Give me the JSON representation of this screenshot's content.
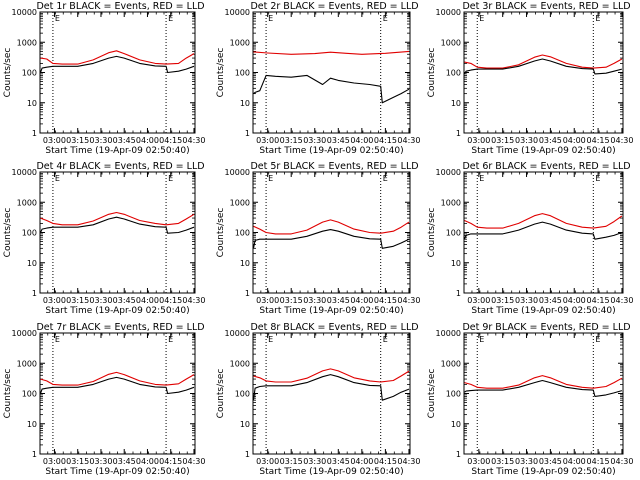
{
  "colors": {
    "events": "#000000",
    "lld": "#e00000",
    "axes": "#000000",
    "background": "#ffffff",
    "marker": "#000000"
  },
  "chart_data": [
    {
      "type": "line",
      "title": "Det 1r BLACK = Events, RED = LLD",
      "xlabel": "Start Time (19-Apr-09 02:50:40)",
      "ylabel": "Counts/sec",
      "y_scale": "log",
      "ylim": [
        1,
        10000
      ],
      "x_range_minutes_from_start": [
        0,
        100
      ],
      "x_ticks": [
        "03:00",
        "03:15",
        "03:30",
        "03:45",
        "04:00",
        "04:15",
        "04:30"
      ],
      "y_ticks": [
        "1",
        "10",
        "100",
        "1000",
        "10000"
      ],
      "dotted_vertical_times": [
        "02:59",
        "04:12"
      ],
      "marker_labels": [
        "E",
        "E"
      ],
      "series": [
        {
          "name": "LLD",
          "x": [
            "02:51",
            "02:55",
            "02:59",
            "03:05",
            "03:15",
            "03:25",
            "03:35",
            "03:40",
            "03:45",
            "03:55",
            "04:05",
            "04:12",
            "04:20",
            "04:25",
            "04:30"
          ],
          "y": [
            300,
            280,
            200,
            190,
            190,
            260,
            450,
            520,
            420,
            260,
            200,
            190,
            200,
            300,
            420
          ]
        },
        {
          "name": "Events",
          "x": [
            "02:51",
            "02:52",
            "02:55",
            "02:59",
            "03:05",
            "03:15",
            "03:25",
            "03:35",
            "03:40",
            "03:45",
            "03:55",
            "04:05",
            "04:12",
            "04:13",
            "04:20",
            "04:25",
            "04:30"
          ],
          "y": [
            100,
            140,
            150,
            160,
            160,
            160,
            200,
            300,
            340,
            300,
            200,
            165,
            160,
            100,
            110,
            130,
            160
          ]
        }
      ]
    },
    {
      "type": "line",
      "title": "Det 2r BLACK = Events, RED = LLD",
      "xlabel": "Start Time (19-Apr-09 02:50:40)",
      "ylabel": "Counts/sec",
      "y_scale": "log",
      "ylim": [
        1,
        10000
      ],
      "x_range_minutes_from_start": [
        0,
        100
      ],
      "x_ticks": [
        "03:00",
        "03:15",
        "03:30",
        "03:45",
        "04:00",
        "04:15",
        "04:30"
      ],
      "y_ticks": [
        "1",
        "10",
        "100",
        "1000",
        "10000"
      ],
      "dotted_vertical_times": [
        "02:59",
        "04:12"
      ],
      "marker_labels": [
        "E",
        "E"
      ],
      "series": [
        {
          "name": "LLD",
          "x": [
            "02:51",
            "03:00",
            "03:15",
            "03:30",
            "03:40",
            "03:50",
            "04:00",
            "04:15",
            "04:30"
          ],
          "y": [
            480,
            440,
            400,
            420,
            470,
            430,
            400,
            430,
            500
          ]
        },
        {
          "name": "Events",
          "x": [
            "02:51",
            "02:52",
            "02:55",
            "02:59",
            "03:05",
            "03:15",
            "03:25",
            "03:35",
            "03:40",
            "03:45",
            "03:55",
            "04:05",
            "04:12",
            "04:13",
            "04:20",
            "04:25",
            "04:30"
          ],
          "y": [
            20,
            22,
            25,
            80,
            75,
            70,
            80,
            40,
            65,
            55,
            45,
            40,
            35,
            10,
            15,
            20,
            28
          ]
        }
      ]
    },
    {
      "type": "line",
      "title": "Det 3r BLACK = Events, RED = LLD",
      "xlabel": "Start Time (19-Apr-09 02:50:40)",
      "ylabel": "Counts/sec",
      "y_scale": "log",
      "ylim": [
        1,
        10000
      ],
      "x_range_minutes_from_start": [
        0,
        100
      ],
      "x_ticks": [
        "03:00",
        "03:15",
        "03:30",
        "03:45",
        "04:00",
        "04:15",
        "04:30"
      ],
      "y_ticks": [
        "1",
        "10",
        "100",
        "1000",
        "10000"
      ],
      "dotted_vertical_times": [
        "02:59",
        "04:12"
      ],
      "marker_labels": [
        "E",
        "E"
      ],
      "series": [
        {
          "name": "LLD",
          "x": [
            "02:51",
            "02:55",
            "02:59",
            "03:05",
            "03:15",
            "03:25",
            "03:35",
            "03:40",
            "03:45",
            "03:55",
            "04:05",
            "04:12",
            "04:20",
            "04:25",
            "04:30"
          ],
          "y": [
            220,
            200,
            150,
            140,
            140,
            180,
            320,
            380,
            330,
            200,
            150,
            140,
            150,
            200,
            280
          ]
        },
        {
          "name": "Events",
          "x": [
            "02:51",
            "02:52",
            "02:55",
            "02:59",
            "03:05",
            "03:15",
            "03:25",
            "03:35",
            "03:40",
            "03:45",
            "03:55",
            "04:05",
            "04:12",
            "04:13",
            "04:20",
            "04:25",
            "04:30"
          ],
          "y": [
            90,
            110,
            120,
            130,
            130,
            130,
            160,
            240,
            280,
            240,
            160,
            135,
            130,
            90,
            95,
            110,
            130
          ]
        }
      ]
    },
    {
      "type": "line",
      "title": "Det 4r BLACK = Events, RED = LLD",
      "xlabel": "Start Time (19-Apr-09 02:50:40)",
      "ylabel": "Counts/sec",
      "y_scale": "log",
      "ylim": [
        1,
        10000
      ],
      "x_range_minutes_from_start": [
        0,
        100
      ],
      "x_ticks": [
        "03:00",
        "03:15",
        "03:30",
        "03:45",
        "04:00",
        "04:15",
        "04:30"
      ],
      "y_ticks": [
        "1",
        "10",
        "100",
        "1000",
        "10000"
      ],
      "dotted_vertical_times": [
        "02:59",
        "04:12"
      ],
      "marker_labels": [
        "E",
        "E"
      ],
      "series": [
        {
          "name": "LLD",
          "x": [
            "02:51",
            "02:55",
            "02:59",
            "03:05",
            "03:15",
            "03:25",
            "03:35",
            "03:40",
            "03:45",
            "03:55",
            "04:05",
            "04:12",
            "04:20",
            "04:25",
            "04:30"
          ],
          "y": [
            300,
            250,
            200,
            180,
            180,
            240,
            400,
            460,
            400,
            250,
            200,
            180,
            200,
            280,
            400
          ]
        },
        {
          "name": "Events",
          "x": [
            "02:51",
            "02:52",
            "02:55",
            "02:59",
            "03:05",
            "03:15",
            "03:25",
            "03:35",
            "03:40",
            "03:45",
            "03:55",
            "04:05",
            "04:12",
            "04:13",
            "04:20",
            "04:25",
            "04:30"
          ],
          "y": [
            100,
            130,
            140,
            150,
            150,
            150,
            180,
            280,
            320,
            280,
            190,
            155,
            150,
            95,
            100,
            120,
            150
          ]
        }
      ]
    },
    {
      "type": "line",
      "title": "Det 5r BLACK = Events, RED = LLD",
      "xlabel": "Start Time (19-Apr-09 02:50:40)",
      "ylabel": "Counts/sec",
      "y_scale": "log",
      "ylim": [
        1,
        10000
      ],
      "x_range_minutes_from_start": [
        0,
        100
      ],
      "x_ticks": [
        "03:00",
        "03:15",
        "03:30",
        "03:45",
        "04:00",
        "04:15",
        "04:30"
      ],
      "y_ticks": [
        "1",
        "10",
        "100",
        "1000",
        "10000"
      ],
      "dotted_vertical_times": [
        "02:59",
        "04:12"
      ],
      "marker_labels": [
        "E",
        "E"
      ],
      "series": [
        {
          "name": "LLD",
          "x": [
            "02:51",
            "02:55",
            "02:59",
            "03:05",
            "03:15",
            "03:25",
            "03:35",
            "03:40",
            "03:45",
            "03:55",
            "04:05",
            "04:12",
            "04:20",
            "04:25",
            "04:30"
          ],
          "y": [
            160,
            130,
            100,
            90,
            90,
            120,
            220,
            260,
            220,
            130,
            100,
            95,
            110,
            150,
            220
          ]
        },
        {
          "name": "Events",
          "x": [
            "02:51",
            "02:52",
            "02:55",
            "02:59",
            "03:05",
            "03:15",
            "03:25",
            "03:35",
            "03:40",
            "03:45",
            "03:55",
            "04:05",
            "04:12",
            "04:13",
            "04:20",
            "04:25",
            "04:30"
          ],
          "y": [
            30,
            55,
            60,
            60,
            60,
            60,
            75,
            110,
            125,
            110,
            75,
            62,
            60,
            30,
            35,
            45,
            60
          ]
        }
      ]
    },
    {
      "type": "line",
      "title": "Det 6r BLACK = Events, RED = LLD",
      "xlabel": "Start Time (19-Apr-09 02:50:40)",
      "ylabel": "Counts/sec",
      "y_scale": "log",
      "ylim": [
        1,
        10000
      ],
      "x_range_minutes_from_start": [
        0,
        100
      ],
      "x_ticks": [
        "03:00",
        "03:15",
        "03:30",
        "03:45",
        "04:00",
        "04:15",
        "04:30"
      ],
      "y_ticks": [
        "1",
        "10",
        "100",
        "1000",
        "10000"
      ],
      "dotted_vertical_times": [
        "02:59",
        "04:12"
      ],
      "marker_labels": [
        "E",
        "E"
      ],
      "series": [
        {
          "name": "LLD",
          "x": [
            "02:51",
            "02:55",
            "02:59",
            "03:05",
            "03:15",
            "03:25",
            "03:35",
            "03:40",
            "03:45",
            "03:55",
            "04:05",
            "04:12",
            "04:20",
            "04:25",
            "04:30"
          ],
          "y": [
            250,
            200,
            150,
            140,
            140,
            200,
            360,
            420,
            360,
            200,
            150,
            140,
            160,
            230,
            350
          ]
        },
        {
          "name": "Events",
          "x": [
            "02:51",
            "02:52",
            "02:55",
            "02:59",
            "03:05",
            "03:15",
            "03:25",
            "03:35",
            "03:40",
            "03:45",
            "03:55",
            "04:05",
            "04:12",
            "04:13",
            "04:20",
            "04:25",
            "04:30"
          ],
          "y": [
            60,
            80,
            90,
            90,
            90,
            90,
            120,
            190,
            220,
            190,
            120,
            95,
            90,
            60,
            70,
            80,
            100
          ]
        }
      ]
    },
    {
      "type": "line",
      "title": "Det 7r BLACK = Events, RED = LLD",
      "xlabel": "Start Time (19-Apr-09 02:50:40)",
      "ylabel": "Counts/sec",
      "y_scale": "log",
      "ylim": [
        1,
        10000
      ],
      "x_range_minutes_from_start": [
        0,
        100
      ],
      "x_ticks": [
        "03:00",
        "03:15",
        "03:30",
        "03:45",
        "04:00",
        "04:15",
        "04:30"
      ],
      "y_ticks": [
        "1",
        "10",
        "100",
        "1000",
        "10000"
      ],
      "dotted_vertical_times": [
        "02:59",
        "04:12"
      ],
      "marker_labels": [
        "E",
        "E"
      ],
      "series": [
        {
          "name": "LLD",
          "x": [
            "02:51",
            "02:55",
            "02:59",
            "03:05",
            "03:15",
            "03:25",
            "03:35",
            "03:40",
            "03:45",
            "03:55",
            "04:05",
            "04:12",
            "04:20",
            "04:25",
            "04:30"
          ],
          "y": [
            300,
            260,
            200,
            190,
            190,
            250,
            430,
            500,
            420,
            260,
            200,
            190,
            210,
            300,
            420
          ]
        },
        {
          "name": "Events",
          "x": [
            "02:51",
            "02:52",
            "02:55",
            "02:59",
            "03:05",
            "03:15",
            "03:25",
            "03:35",
            "03:40",
            "03:45",
            "03:55",
            "04:05",
            "04:12",
            "04:13",
            "04:20",
            "04:25",
            "04:30"
          ],
          "y": [
            100,
            140,
            150,
            160,
            160,
            160,
            200,
            300,
            340,
            300,
            200,
            165,
            160,
            100,
            110,
            130,
            160
          ]
        }
      ]
    },
    {
      "type": "line",
      "title": "Det 8r BLACK = Events, RED = LLD",
      "xlabel": "Start Time (19-Apr-09 02:50:40)",
      "ylabel": "Counts/sec",
      "y_scale": "log",
      "ylim": [
        1,
        10000
      ],
      "x_range_minutes_from_start": [
        0,
        100
      ],
      "x_ticks": [
        "03:00",
        "03:15",
        "03:30",
        "03:45",
        "04:00",
        "04:15",
        "04:30"
      ],
      "y_ticks": [
        "1",
        "10",
        "100",
        "1000",
        "10000"
      ],
      "dotted_vertical_times": [
        "02:59",
        "04:12"
      ],
      "marker_labels": [
        "E",
        "E"
      ],
      "series": [
        {
          "name": "LLD",
          "x": [
            "02:51",
            "02:55",
            "02:59",
            "03:05",
            "03:15",
            "03:25",
            "03:35",
            "03:40",
            "03:45",
            "03:55",
            "04:05",
            "04:12",
            "04:20",
            "04:25",
            "04:30"
          ],
          "y": [
            380,
            330,
            260,
            240,
            240,
            320,
            560,
            650,
            560,
            330,
            260,
            240,
            270,
            380,
            550
          ]
        },
        {
          "name": "Events",
          "x": [
            "02:51",
            "02:52",
            "02:55",
            "02:59",
            "03:05",
            "03:15",
            "03:25",
            "03:35",
            "03:40",
            "03:45",
            "03:55",
            "04:05",
            "04:12",
            "04:13",
            "04:20",
            "04:25",
            "04:30"
          ],
          "y": [
            60,
            150,
            170,
            180,
            180,
            180,
            230,
            360,
            420,
            360,
            230,
            185,
            180,
            60,
            80,
            110,
            140
          ]
        }
      ]
    },
    {
      "type": "line",
      "title": "Det 9r BLACK = Events, RED = LLD",
      "xlabel": "Start Time (19-Apr-09 02:50:40)",
      "ylabel": "Counts/sec",
      "y_scale": "log",
      "ylim": [
        1,
        10000
      ],
      "x_range_minutes_from_start": [
        0,
        100
      ],
      "x_ticks": [
        "03:00",
        "03:15",
        "03:30",
        "03:45",
        "04:00",
        "04:15",
        "04:30"
      ],
      "y_ticks": [
        "1",
        "10",
        "100",
        "1000",
        "10000"
      ],
      "dotted_vertical_times": [
        "02:59",
        "04:12"
      ],
      "marker_labels": [
        "E",
        "E"
      ],
      "series": [
        {
          "name": "LLD",
          "x": [
            "02:51",
            "02:55",
            "02:59",
            "03:05",
            "03:15",
            "03:25",
            "03:35",
            "03:40",
            "03:45",
            "03:55",
            "04:05",
            "04:12",
            "04:20",
            "04:25",
            "04:30"
          ],
          "y": [
            230,
            200,
            160,
            150,
            150,
            190,
            330,
            390,
            330,
            200,
            160,
            150,
            170,
            230,
            320
          ]
        },
        {
          "name": "Events",
          "x": [
            "02:51",
            "02:52",
            "02:55",
            "02:59",
            "03:05",
            "03:15",
            "03:25",
            "03:35",
            "03:40",
            "03:45",
            "03:55",
            "04:05",
            "04:12",
            "04:13",
            "04:20",
            "04:25",
            "04:30"
          ],
          "y": [
            110,
            120,
            125,
            130,
            130,
            130,
            160,
            230,
            270,
            230,
            160,
            135,
            130,
            80,
            90,
            105,
            125
          ]
        }
      ]
    }
  ]
}
